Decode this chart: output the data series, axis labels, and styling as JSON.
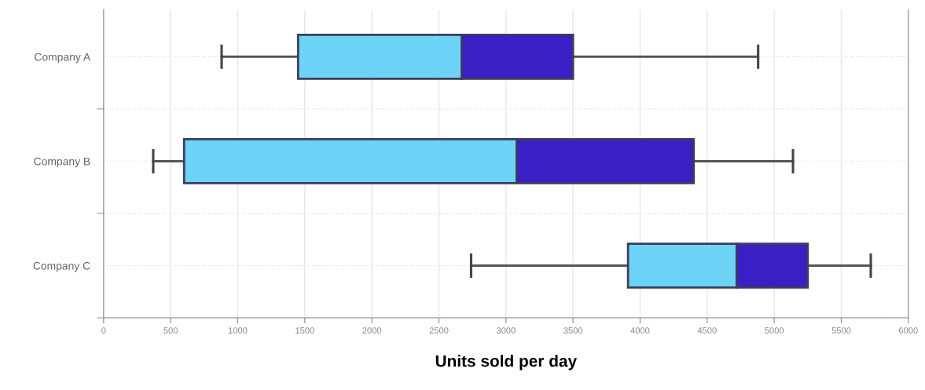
{
  "chart_data": {
    "type": "box",
    "orientation": "horizontal",
    "xlabel": "Units sold per day",
    "categories": [
      "Company A",
      "Company B",
      "Company C"
    ],
    "boxes": [
      {
        "low": 880,
        "q1": 1450,
        "median": 2670,
        "q3": 3500,
        "high": 4880
      },
      {
        "low": 370,
        "q1": 600,
        "median": 3080,
        "q3": 4400,
        "high": 5140
      },
      {
        "low": 2740,
        "q1": 3910,
        "median": 4720,
        "q3": 5250,
        "high": 5720
      }
    ],
    "colors": [
      "#6dd3f7",
      "#6dd3f7",
      "#6dd3f7"
    ],
    "color": "#3a1fc4",
    "xlim": [
      0,
      6000
    ],
    "xticks": [
      0,
      500,
      1000,
      1500,
      2000,
      2500,
      3000,
      3500,
      4000,
      4500,
      5000,
      5500,
      6000
    ],
    "grid": true
  }
}
